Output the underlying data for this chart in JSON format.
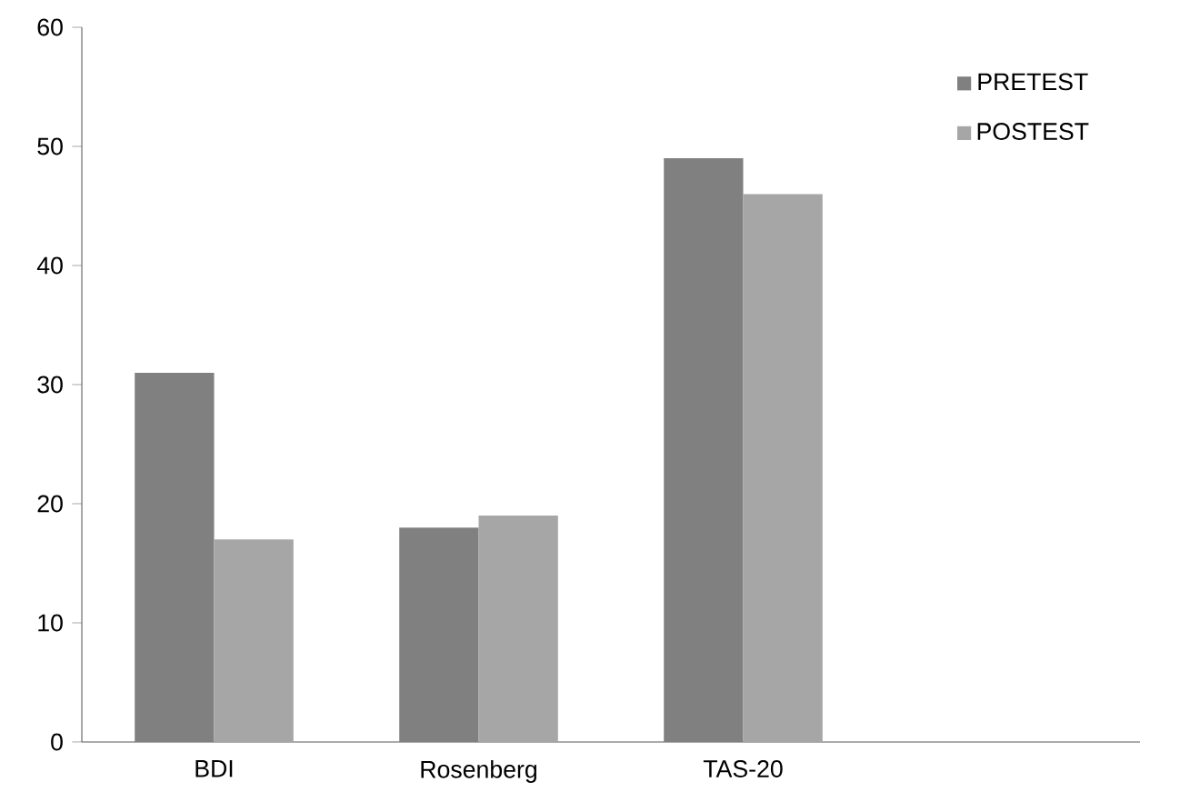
{
  "chart_data": {
    "type": "bar",
    "categories": [
      "BDI",
      "Rosenberg",
      "TAS-20",
      null
    ],
    "series": [
      {
        "name": "PRETEST",
        "color": "#808080",
        "values": [
          31,
          18,
          49,
          null
        ]
      },
      {
        "name": "POSTEST",
        "color": "#a6a6a6",
        "values": [
          17,
          19,
          46,
          null
        ]
      }
    ],
    "ylim": [
      0,
      60
    ],
    "yticks": [
      0,
      10,
      20,
      30,
      40,
      50,
      60
    ],
    "grid": false,
    "legend": "top right"
  }
}
